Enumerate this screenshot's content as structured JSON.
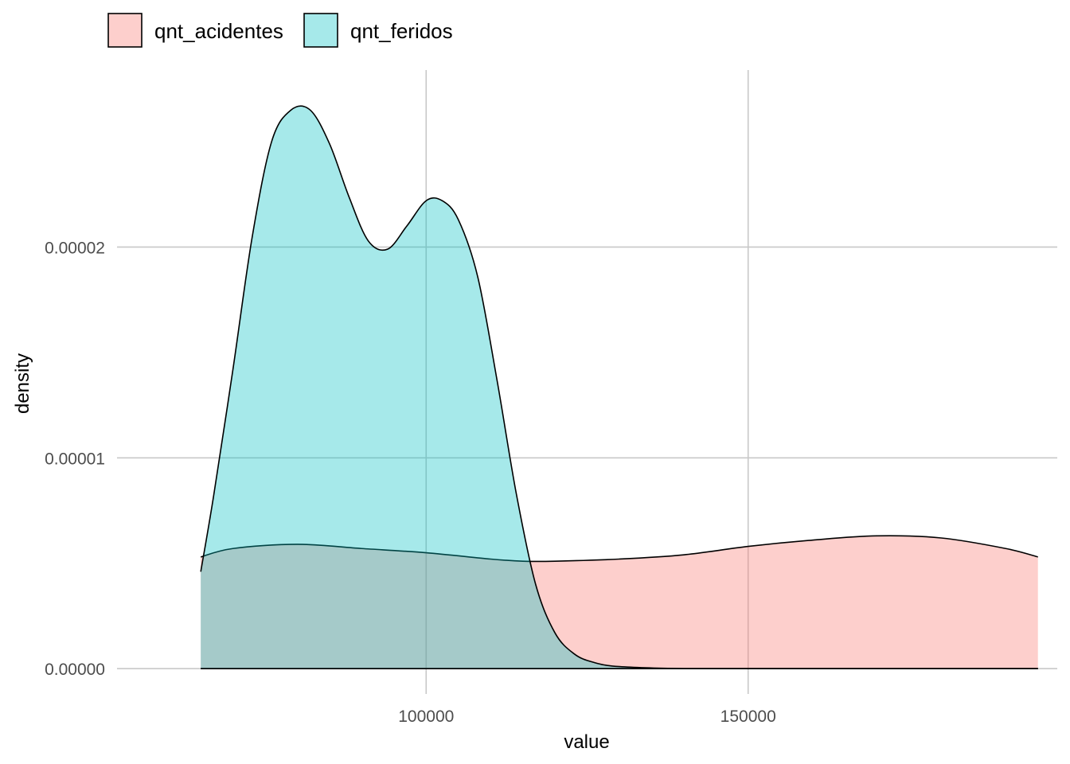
{
  "chart_data": {
    "type": "area",
    "chart_kind": "density",
    "xlabel": "value",
    "ylabel": "density",
    "xlim": [
      52000,
      198000
    ],
    "ylim": [
      -1.2e-06,
      2.84e-05
    ],
    "x_ticks": [
      100000,
      150000
    ],
    "x_tick_labels": [
      "100000",
      "150000"
    ],
    "y_ticks": [
      0,
      1e-05,
      2e-05
    ],
    "y_tick_labels": [
      "0.00000",
      "0.00001",
      "0.00002"
    ],
    "grid": true,
    "legend_position": "top-left",
    "series": [
      {
        "name": "qnt_acidentes",
        "color": "#F8766D",
        "x": [
          65000,
          70000,
          80000,
          90000,
          100000,
          110000,
          115000,
          120000,
          130000,
          140000,
          150000,
          160000,
          170000,
          180000,
          190000,
          195000
        ],
        "y": [
          5.3e-06,
          5.7e-06,
          5.9e-06,
          5.7e-06,
          5.5e-06,
          5.2e-06,
          5.1e-06,
          5.1e-06,
          5.2e-06,
          5.4e-06,
          5.8e-06,
          6.1e-06,
          6.3e-06,
          6.2e-06,
          5.7e-06,
          5.3e-06
        ]
      },
      {
        "name": "qnt_feridos",
        "color": "#00BFC4",
        "x": [
          65000,
          67000,
          70000,
          73000,
          76000,
          79000,
          82000,
          85000,
          88000,
          91000,
          94000,
          97000,
          100000,
          102500,
          105000,
          108000,
          111000,
          114000,
          117000,
          120000,
          123000,
          126000,
          130000,
          140000,
          150000,
          160000,
          170000,
          180000,
          195000
        ],
        "y": [
          4.6e-06,
          8.2e-06,
          1.42e-05,
          2.05e-05,
          2.5e-05,
          2.65e-05,
          2.65e-05,
          2.49e-05,
          2.24e-05,
          2.03e-05,
          1.99e-05,
          2.1e-05,
          2.22e-05,
          2.22e-05,
          2.13e-05,
          1.86e-05,
          1.37e-05,
          8.3e-06,
          4e-06,
          1.7e-06,
          7e-07,
          3e-07,
          1e-07,
          0,
          0,
          0,
          0,
          0,
          0
        ]
      }
    ]
  }
}
